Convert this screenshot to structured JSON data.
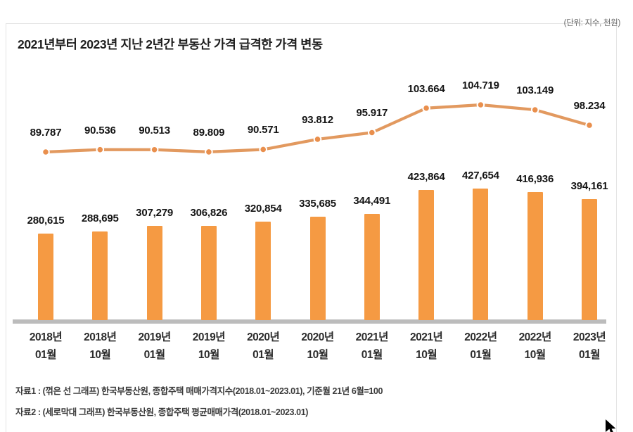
{
  "page": {
    "unit_label": "(단위: 지수, 천원)",
    "title": "2021년부터 2023년 지난 2년간 부동산 가격 급격한 가격 변동",
    "footnote1": "자료1 : (꺾은 선 그래프) 한국부동산원, 종합주택 매매가격지수(2018.01~2023.01), 기준월 21년 6월=100",
    "footnote2": "자료2 : (세로막대 그래프) 한국부동산원, 종합주택 평균매매가격(2018.01~2023.01)"
  },
  "colors": {
    "bar": "#f59a43",
    "line": "#e2995f",
    "dot": "#e98f4d",
    "axis": "#bcbcbc",
    "label_text": "#141414"
  },
  "chart_data": {
    "type": [
      "line",
      "bar"
    ],
    "title": "2021년부터 2023년 지난 2년간 부동산 가격 급격한 가격 변동",
    "unit": "(단위: 지수, 천원)",
    "legend_position": "none",
    "grid": false,
    "categories": [
      {
        "top": "2018년",
        "bottom": "01월"
      },
      {
        "top": "2018년",
        "bottom": "10월"
      },
      {
        "top": "2019년",
        "bottom": "01월"
      },
      {
        "top": "2019년",
        "bottom": "10월"
      },
      {
        "top": "2020년",
        "bottom": "01월"
      },
      {
        "top": "2020년",
        "bottom": "10월"
      },
      {
        "top": "2021년",
        "bottom": "01월"
      },
      {
        "top": "2021년",
        "bottom": "10월"
      },
      {
        "top": "2022년",
        "bottom": "01월"
      },
      {
        "top": "2022년",
        "bottom": "10월"
      },
      {
        "top": "2023년",
        "bottom": "01월"
      }
    ],
    "series": [
      {
        "name": "종합주택 매매가격지수",
        "type": "line",
        "values": [
          89.787,
          90.536,
          90.513,
          89.809,
          90.571,
          93.812,
          95.917,
          103.664,
          104.719,
          103.149,
          98.234
        ],
        "labels": [
          "89.787",
          "90.536",
          "90.513",
          "89.809",
          "90.571",
          "93.812",
          "95.917",
          "103.664",
          "104.719",
          "103.149",
          "98.234"
        ]
      },
      {
        "name": "종합주택 평균매매가격",
        "type": "bar",
        "values": [
          280615,
          288695,
          307279,
          306826,
          320854,
          335685,
          344491,
          423864,
          427654,
          416936,
          394161
        ],
        "labels": [
          "280,615",
          "288,695",
          "307,279",
          "306,826",
          "320,854",
          "335,685",
          "344,491",
          "423,864",
          "427,654",
          "416,936",
          "394,161"
        ]
      }
    ]
  }
}
